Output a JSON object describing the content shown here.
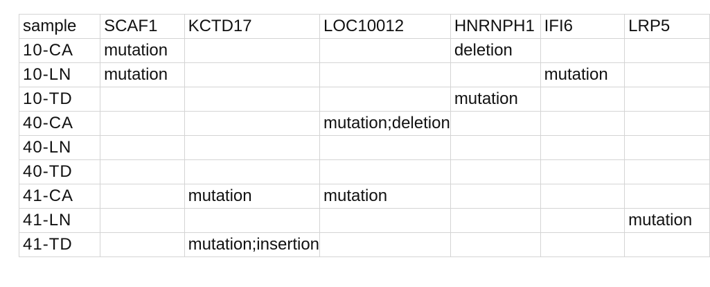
{
  "table": {
    "headers": [
      "sample",
      "SCAF1",
      "KCTD17",
      "LOC10012",
      "HNRNPH1",
      "IFI6",
      "LRP5"
    ],
    "rows": [
      [
        "10-CA",
        "mutation",
        "",
        "",
        "deletion",
        "",
        ""
      ],
      [
        "10-LN",
        "mutation",
        "",
        "",
        "",
        "mutation",
        ""
      ],
      [
        "10-TD",
        "",
        "",
        "",
        "mutation",
        "",
        ""
      ],
      [
        "40-CA",
        "",
        "",
        "mutation;deletion",
        "",
        "",
        ""
      ],
      [
        "40-LN",
        "",
        "",
        "",
        "",
        "",
        ""
      ],
      [
        "40-TD",
        "",
        "",
        "",
        "",
        "",
        ""
      ],
      [
        "41-CA",
        "",
        "mutation",
        "mutation",
        "",
        "",
        ""
      ],
      [
        "41-LN",
        "",
        "",
        "",
        "",
        "",
        "mutation"
      ],
      [
        "41-TD",
        "",
        "mutation;insertion",
        "",
        "",
        "",
        ""
      ]
    ]
  }
}
